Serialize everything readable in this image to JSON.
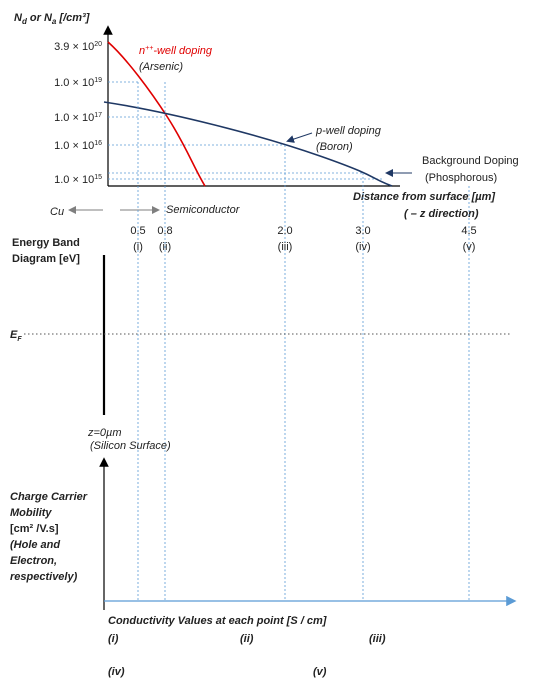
{
  "colors": {
    "axis": "#000000",
    "blue": "#5b9bd5",
    "navy": "#1f3864",
    "red": "#e00000",
    "gray": "#7f7f7f"
  },
  "doping": {
    "y_axis_label": {
      "nd": "N",
      "nd_sub": "d",
      "or": " or ",
      "na": "N",
      "na_sub": "a",
      "unit": " [/cm³]"
    },
    "y_ticks": [
      {
        "id": "t1",
        "mant": "3.9 × 10",
        "exp": "20",
        "y": 46
      },
      {
        "id": "t2",
        "mant": "1.0 × 10",
        "exp": "19",
        "y": 82
      },
      {
        "id": "t3",
        "mant": "1.0 × 10",
        "exp": "17",
        "y": 117
      },
      {
        "id": "t4",
        "mant": "1.0 × 10",
        "exp": "16",
        "y": 145
      },
      {
        "id": "t5",
        "mant": "1.0 × 10",
        "exp": "15",
        "y": 179
      }
    ],
    "nwell_label": {
      "n": "n",
      "sup": "++",
      "rest": "-well doping"
    },
    "nwell_sub": "(Arsenic)",
    "pwell_label": "p-well doping",
    "pwell_sub": "(Boron)",
    "bg_label": "Background Doping",
    "bg_sub": "(Phosphorous)",
    "x_axis_label": "Distance from surface [µm]",
    "x_axis_sub": "( – z direction)",
    "cu_label": "Cu",
    "semi_label": "Semiconductor"
  },
  "positions": [
    {
      "id": "p1",
      "value": "0.5",
      "roman": "(i)",
      "z": 0.5
    },
    {
      "id": "p2",
      "value": "0.8",
      "roman": "(ii)",
      "z": 0.8
    },
    {
      "id": "p3",
      "value": "2.0",
      "roman": "(iii)",
      "z": 2.0
    },
    {
      "id": "p4",
      "value": "3.0",
      "roman": "(iv)",
      "z": 3.0
    },
    {
      "id": "p5",
      "value": "4.5",
      "roman": "(v)",
      "z": 4.5
    }
  ],
  "band": {
    "title_line1": "Energy Band",
    "title_line2": "Diagram [eV]",
    "ef_label": "E",
    "ef_sub": "F",
    "z0_label": "z=0µm",
    "z0_sub": "(Silicon Surface)"
  },
  "mobility": {
    "lines": [
      "Charge Carrier",
      "Mobility",
      "[cm² /V.s]",
      "(Hole and",
      "Electron,",
      "respectively)"
    ]
  },
  "conductivity": {
    "title": "Conductivity Values at  each point",
    "unit": "  [S / cm]",
    "items": [
      "(i)",
      "(ii)",
      "(iii)",
      "(iv)",
      "(v)"
    ]
  }
}
